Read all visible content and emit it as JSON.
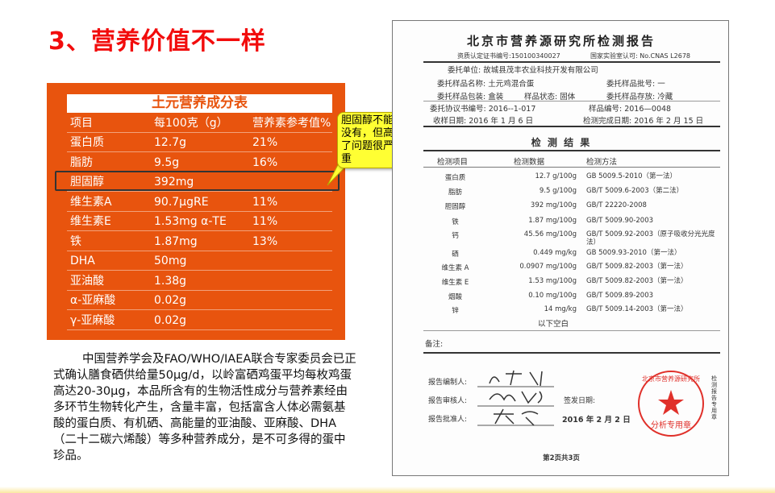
{
  "slide_title": "3、营养价值不一样",
  "nutrition_table": {
    "title": "土元营养成分表",
    "headers": [
      "项目",
      "每100克（g）",
      "营养素参考值%"
    ],
    "rows": [
      [
        "蛋白质",
        "12.7g",
        "21%"
      ],
      [
        "脂肪",
        "9.5g",
        "16%"
      ],
      [
        "胆固醇",
        "392mg",
        ""
      ],
      [
        "维生素A",
        "90.7μgRE",
        "11%"
      ],
      [
        "维生素E",
        "1.53mg α-TE",
        "11%"
      ],
      [
        "铁",
        "1.87mg",
        "13%"
      ],
      [
        "DHA",
        "50mg",
        ""
      ],
      [
        "亚油酸",
        "1.38g",
        ""
      ],
      [
        "α-亚麻酸",
        "0.02g",
        ""
      ],
      [
        "γ-亚麻酸",
        "0.02g",
        ""
      ]
    ],
    "highlight_row": 2
  },
  "callout": "胆固醇不能没有，但高了问题很严重",
  "paragraph": "中国营养学会及FAO/WHO/IAEA联合专家委员会已正式确认膳食硒供给量50μg/d，以岭富硒鸡蛋平均每枚鸡蛋高达20-30μg，本品所含有的生物活性成分与营养素经由多环节生物转化产生，含量丰富，包括富含人体必需氨基酸的蛋白质、有机硒、高能量的亚油酸、亚麻酸、DHA（二十二碳六烯酸）等多种营养成分，是不可多得的蛋中珍品。",
  "report": {
    "title": "北京市营养源研究所检测报告",
    "cert": "资质认定证书编号:150100340027",
    "cnas": "国家实验室认可: No.CNAS L2678",
    "client": "委托单位: 故城县茂丰农业科技开发有限公司",
    "sample_name": "委托样品名称: 土元鸡混合蛋",
    "batch": "委托样品批号: 一",
    "packaging": "委托样品包装: 盒装",
    "state": "样品状态: 固体",
    "storage": "委托样品存放: 冷藏",
    "agreement": "委托协议书编号: 2016--1-017",
    "sample_no": "样品编号: 2016—0048",
    "received": "收样日期: 2016 年 1 月 6 日",
    "completed": "检测完成日期: 2016 年 2 月 15 日",
    "results_title": "检 测 结 果",
    "headers": [
      "检测项目",
      "检测数据",
      "检测方法"
    ],
    "rows": [
      [
        "蛋白质",
        "12.7 g/100g",
        "GB 5009.5-2010（第一法）"
      ],
      [
        "脂肪",
        "9.5 g/100g",
        "GB/T 5009.6-2003（第二法）"
      ],
      [
        "胆固醇",
        "392 mg/100g",
        "GB/T 22220-2008"
      ],
      [
        "铁",
        "1.87 mg/100g",
        "GB/T 5009.90-2003"
      ],
      [
        "钙",
        "45.56 mg/100g",
        "GB/T 5009.92-2003（原子吸收分光光度法）"
      ],
      [
        "硒",
        "0.449 mg/kg",
        "GB 5009.93-2010（第一法）"
      ],
      [
        "维生素 A",
        "0.0907 mg/100g",
        "GB/T 5009.82-2003（第一法）"
      ],
      [
        "维生素 E",
        "1.53 mg/100g",
        "GB/T 5009.82-2003（第一法）"
      ],
      [
        "烟酸",
        "0.10 mg/100g",
        "GB/T 5009.89-2003"
      ],
      [
        "锌",
        "14 mg/kg",
        "GB/T 5009.14-2003（第一法）"
      ]
    ],
    "blank_below": "以下空白",
    "remarks": "备注:",
    "compiler": "报告编制人:",
    "reviewer": "报告审核人:",
    "approver": "报告批准人:",
    "issue_date_label": "签发日期:",
    "issue_date": "2016 年 2 月 2 日",
    "seal_text": "北京市营养源研究所",
    "seal_sub": "分析专用章",
    "side_text": "检测报告专用章",
    "page": "第2页共3页",
    "seal_color": "#e0302a"
  }
}
